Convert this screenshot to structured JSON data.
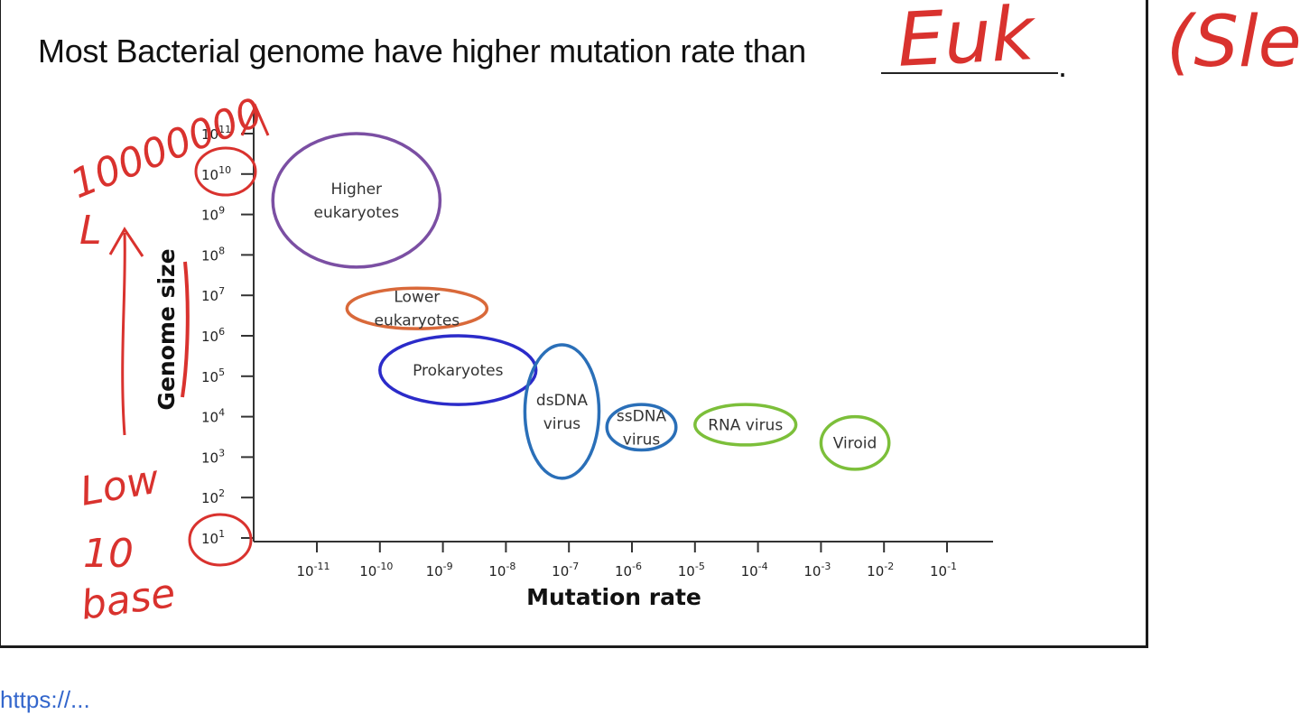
{
  "question": {
    "text": "Most Bacterial genome have higher mutation rate than",
    "answer": "Euk",
    "period": "."
  },
  "margin_note": "(Sle",
  "link_fragment": "https://...",
  "annotations": {
    "top_number": "10000000",
    "top_unit": "L",
    "bottom_line1": "Low",
    "bottom_line2": "10",
    "bottom_line3": "base"
  },
  "colors": {
    "ink": "#d9322e",
    "higher_eukaryotes": "#7b4fa3",
    "lower_eukaryotes": "#d9693a",
    "prokaryotes": "#2b2bc9",
    "dsdna_virus": "#2a6fb8",
    "ssdna_virus": "#2a6fb8",
    "rna_virus": "#7cbf3a",
    "viroid": "#7cbf3a"
  },
  "chart_data": {
    "type": "scatter",
    "xlabel": "Mutation rate",
    "ylabel": "Genome size",
    "x_scale": "log",
    "y_scale": "log",
    "xlim": [
      1e-11,
      0.1
    ],
    "ylim": [
      10.0,
      100000000000.0
    ],
    "x_ticks": [
      {
        "value": 1e-11,
        "base": "10",
        "exp": "-11"
      },
      {
        "value": 1e-10,
        "base": "10",
        "exp": "-10"
      },
      {
        "value": 1e-09,
        "base": "10",
        "exp": "-9"
      },
      {
        "value": 1e-08,
        "base": "10",
        "exp": "-8"
      },
      {
        "value": 1e-07,
        "base": "10",
        "exp": "-7"
      },
      {
        "value": 1e-06,
        "base": "10",
        "exp": "-6"
      },
      {
        "value": 1e-05,
        "base": "10",
        "exp": "-5"
      },
      {
        "value": 0.0001,
        "base": "10",
        "exp": "-4"
      },
      {
        "value": 0.001,
        "base": "10",
        "exp": "-3"
      },
      {
        "value": 0.01,
        "base": "10",
        "exp": "-2"
      },
      {
        "value": 0.1,
        "base": "10",
        "exp": "-1"
      }
    ],
    "y_ticks": [
      {
        "value": 10.0,
        "base": "10",
        "exp": "1"
      },
      {
        "value": 100.0,
        "base": "10",
        "exp": "2"
      },
      {
        "value": 1000.0,
        "base": "10",
        "exp": "3"
      },
      {
        "value": 10000.0,
        "base": "10",
        "exp": "4"
      },
      {
        "value": 100000.0,
        "base": "10",
        "exp": "5"
      },
      {
        "value": 1000000.0,
        "base": "10",
        "exp": "6"
      },
      {
        "value": 10000000.0,
        "base": "10",
        "exp": "7"
      },
      {
        "value": 100000000.0,
        "base": "10",
        "exp": "8"
      },
      {
        "value": 1000000000.0,
        "base": "10",
        "exp": "9"
      },
      {
        "value": 10000000000.0,
        "base": "10",
        "exp": "10"
      },
      {
        "value": 100000000000.0,
        "base": "10",
        "exp": "11"
      }
    ],
    "groups": [
      {
        "key": "higher_eukaryotes",
        "label_lines": [
          "Higher",
          "eukaryotes"
        ],
        "x_range": [
          2e-12,
          9e-10
        ],
        "y_range": [
          50000000.0,
          100000000000.0
        ]
      },
      {
        "key": "lower_eukaryotes",
        "label_lines": [
          "Lower",
          "eukaryotes"
        ],
        "x_range": [
          3e-11,
          5e-09
        ],
        "y_range": [
          1500000.0,
          15000000.0
        ]
      },
      {
        "key": "prokaryotes",
        "label_lines": [
          "Prokaryotes"
        ],
        "x_range": [
          1e-10,
          3e-08
        ],
        "y_range": [
          20000.0,
          1000000.0
        ]
      },
      {
        "key": "dsdna_virus",
        "label_lines": [
          "dsDNA",
          "virus"
        ],
        "x_range": [
          2e-08,
          3e-07
        ],
        "y_range": [
          300.0,
          600000.0
        ]
      },
      {
        "key": "ssdna_virus",
        "label_lines": [
          "ssDNA",
          "virus"
        ],
        "x_range": [
          4e-07,
          5e-06
        ],
        "y_range": [
          1500.0,
          20000.0
        ]
      },
      {
        "key": "rna_virus",
        "label_lines": [
          "RNA virus"
        ],
        "x_range": [
          1e-05,
          0.0004
        ],
        "y_range": [
          2000.0,
          20000.0
        ]
      },
      {
        "key": "viroid",
        "label_lines": [
          "Viroid"
        ],
        "x_range": [
          0.001,
          0.012
        ],
        "y_range": [
          500.0,
          10000.0
        ]
      }
    ]
  }
}
